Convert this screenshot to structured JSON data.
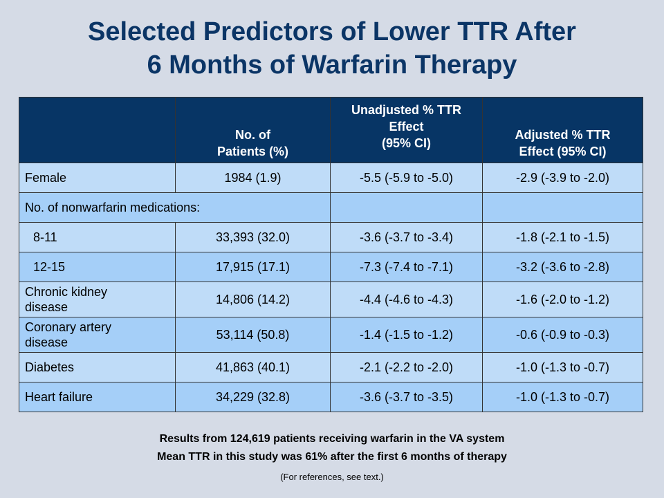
{
  "title": {
    "line1": "Selected Predictors of Lower TTR After",
    "line2": "6 Months of Warfarin Therapy"
  },
  "table": {
    "headers": {
      "col0": "",
      "col1_line1": "No. of",
      "col1_line2": "Patients (%)",
      "col2_line1": "Unadjusted % TTR",
      "col2_line2": "Effect",
      "col2_line3": "(95% CI)",
      "col3_line1": "Adjusted % TTR",
      "col3_line2": "Effect (95% CI)"
    },
    "rows": [
      {
        "label": "Female",
        "patients": "1984 (1.9)",
        "unadjusted": "-5.5 (-5.9 to -5.0)",
        "adjusted": "-2.9 (-3.9 to -2.0)"
      },
      {
        "label": "No. of nonwarfarin medications:",
        "patients": "",
        "unadjusted": "",
        "adjusted": ""
      },
      {
        "label": "8-11",
        "patients": "33,393 (32.0)",
        "unadjusted": "-3.6 (-3.7 to -3.4)",
        "adjusted": "-1.8 (-2.1 to -1.5)"
      },
      {
        "label": "12-15",
        "patients": "17,915 (17.1)",
        "unadjusted": "-7.3 (-7.4 to -7.1)",
        "adjusted": "-3.2 (-3.6 to -2.8)"
      },
      {
        "label_line1": "Chronic kidney",
        "label_line2": "disease",
        "patients": "14,806 (14.2)",
        "unadjusted": "-4.4 (-4.6 to -4.3)",
        "adjusted": "-1.6 (-2.0 to -1.2)"
      },
      {
        "label_line1": "Coronary artery",
        "label_line2": "disease",
        "patients": "53,114 (50.8)",
        "unadjusted": "-1.4 (-1.5 to -1.2)",
        "adjusted": "-0.6 (-0.9 to -0.3)"
      },
      {
        "label": "Diabetes",
        "patients": "41,863 (40.1)",
        "unadjusted": "-2.1 (-2.2 to -2.0)",
        "adjusted": "-1.0 (-1.3 to -0.7)"
      },
      {
        "label": "Heart failure",
        "patients": "34,229 (32.8)",
        "unadjusted": "-3.6 (-3.7 to -3.5)",
        "adjusted": "-1.0 (-1.3 to -0.7)"
      }
    ]
  },
  "notes": {
    "line1": "Results from 124,619 patients receiving warfarin in the VA system",
    "line2": "Mean TTR in this study was 61% after the first 6 months of therapy",
    "line3": "(For references, see text.)"
  },
  "colors": {
    "background": "#d5dbe6",
    "title": "#0b3566",
    "header": "#073565",
    "row_light": "#bfdcf8",
    "row_dark": "#a5cff8"
  }
}
